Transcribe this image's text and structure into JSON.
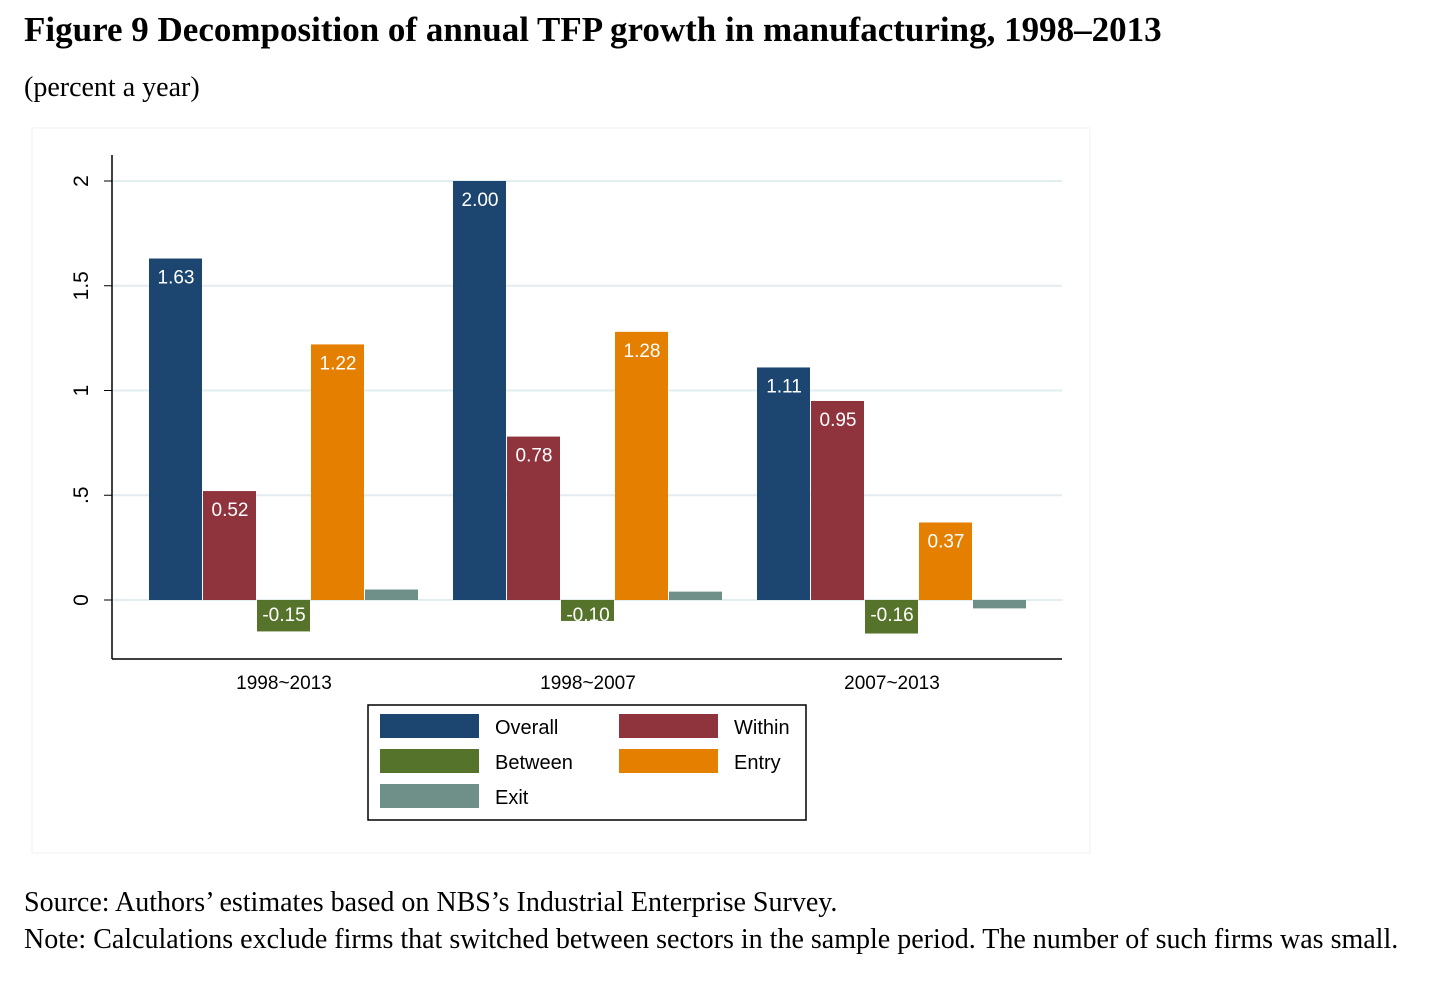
{
  "chart_data": {
    "type": "bar",
    "title": "Figure 9 Decomposition of annual TFP growth in manufacturing, 1998–2013",
    "subtitle": "(percent a year)",
    "categories": [
      "1998~2013",
      "1998~2007",
      "2007~2013"
    ],
    "series": [
      {
        "name": "Overall",
        "color": "#1c4670",
        "values": [
          1.63,
          2.0,
          1.11
        ],
        "labels": [
          "1.63",
          "2.00",
          "1.11"
        ]
      },
      {
        "name": "Within",
        "color": "#8f333d",
        "values": [
          0.52,
          0.78,
          0.95
        ],
        "labels": [
          "0.52",
          "0.78",
          "0.95"
        ]
      },
      {
        "name": "Between",
        "color": "#56732c",
        "values": [
          -0.15,
          -0.1,
          -0.16
        ],
        "labels": [
          "-0.15",
          "-0.10",
          "-0.16"
        ]
      },
      {
        "name": "Entry",
        "color": "#e47f00",
        "values": [
          1.22,
          1.28,
          0.37
        ],
        "labels": [
          "1.22",
          "1.28",
          "0.37"
        ]
      },
      {
        "name": "Exit",
        "color": "#6f9088",
        "values": [
          0.05,
          0.04,
          -0.04
        ],
        "labels": [
          "",
          "",
          ""
        ]
      }
    ],
    "yticks": [
      "0",
      ".5",
      "1",
      "1.5",
      "2"
    ],
    "ytick_values": [
      0,
      0.5,
      1,
      1.5,
      2
    ],
    "ylim": [
      -0.28,
      2.12
    ],
    "grid": true,
    "legend_position": "bottom"
  },
  "source": "Source: Authors’ estimates based on NBS’s Industrial Enterprise Survey.",
  "note": "Note: Calculations exclude firms that switched between sectors in the sample period. The number of such firms was small."
}
